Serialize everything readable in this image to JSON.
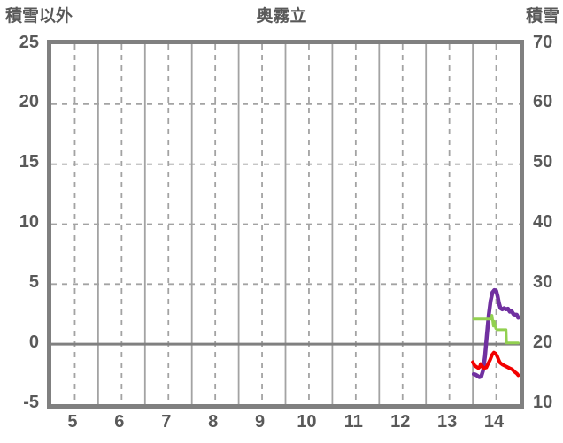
{
  "header": {
    "left_axis_title": "積雪以外",
    "station_title": "奥霧立",
    "right_axis_title": "積雪"
  },
  "colors": {
    "background": "#ffffff",
    "plot_border": "#808080",
    "gridline": "#a3a3a3",
    "zero_line": "#808080",
    "text": "#595959",
    "purple_series": "#7030a0",
    "green_series": "#92d050",
    "red_series": "#f20000"
  },
  "chart_data": {
    "type": "line",
    "title": "奥霧立",
    "x_axis": {
      "range": [
        4.5,
        14.5
      ],
      "tick_positions": [
        5,
        6,
        7,
        8,
        9,
        10,
        11,
        12,
        13,
        14
      ],
      "tick_labels": [
        "5",
        "6",
        "7",
        "8",
        "9",
        "10",
        "11",
        "12",
        "13",
        "14"
      ],
      "solid_gridlines": [
        5.5,
        6.5,
        7.5,
        8.5,
        9.5,
        10.5,
        11.5,
        12.5,
        13.5
      ],
      "dashed_gridlines": [
        5,
        6,
        7,
        8,
        9,
        10,
        11,
        12,
        13,
        14
      ]
    },
    "left_axis": {
      "title": "積雪以外",
      "range": [
        -5,
        25
      ],
      "ticks": [
        25,
        20,
        15,
        10,
        5,
        0,
        -5
      ],
      "dashed_gridlines": [
        20,
        15,
        10,
        5
      ],
      "zero_line": 0
    },
    "right_axis": {
      "title": "積雪",
      "range": [
        10,
        70
      ],
      "ticks": [
        70,
        60,
        50,
        40,
        30,
        20,
        10
      ]
    },
    "grid": true,
    "legend": "none",
    "series": [
      {
        "name": "purple-right-axis",
        "axis": "right",
        "color": "#7030a0",
        "stroke_width": 4.5,
        "points": [
          [
            13.52,
            15.0
          ],
          [
            13.56,
            14.9
          ],
          [
            13.6,
            14.7
          ],
          [
            13.64,
            14.5
          ],
          [
            13.68,
            14.6
          ],
          [
            13.72,
            15.6
          ],
          [
            13.76,
            18.0
          ],
          [
            13.8,
            21.5
          ],
          [
            13.84,
            24.8
          ],
          [
            13.88,
            27.2
          ],
          [
            13.92,
            28.6
          ],
          [
            13.96,
            29.0
          ],
          [
            14.0,
            28.9
          ],
          [
            14.03,
            28.0
          ],
          [
            14.06,
            26.8
          ],
          [
            14.09,
            26.0
          ],
          [
            14.13,
            25.8
          ],
          [
            14.17,
            26.0
          ],
          [
            14.21,
            25.8
          ],
          [
            14.25,
            25.9
          ],
          [
            14.29,
            25.4
          ],
          [
            14.33,
            25.5
          ],
          [
            14.37,
            25.0
          ],
          [
            14.41,
            24.9
          ],
          [
            14.44,
            24.9
          ],
          [
            14.47,
            24.4
          ]
        ]
      },
      {
        "name": "green-left-axis",
        "axis": "left",
        "color": "#92d050",
        "stroke_width": 3,
        "points": [
          [
            13.52,
            2.1
          ],
          [
            13.88,
            2.1
          ],
          [
            13.91,
            2.4
          ],
          [
            13.94,
            1.5
          ],
          [
            13.96,
            1.9
          ],
          [
            13.99,
            1.3
          ],
          [
            14.02,
            1.2
          ],
          [
            14.21,
            1.2
          ],
          [
            14.22,
            0.1
          ],
          [
            14.47,
            0.1
          ]
        ]
      },
      {
        "name": "red-left-axis",
        "axis": "left",
        "color": "#f20000",
        "stroke_width": 4,
        "points": [
          [
            13.5,
            -1.5
          ],
          [
            13.54,
            -1.8
          ],
          [
            13.58,
            -1.9
          ],
          [
            13.62,
            -2.0
          ],
          [
            13.65,
            -1.9
          ],
          [
            13.67,
            -1.65
          ],
          [
            13.7,
            -1.85
          ],
          [
            13.74,
            -2.0
          ],
          [
            13.79,
            -1.95
          ],
          [
            13.83,
            -1.6
          ],
          [
            13.87,
            -1.3
          ],
          [
            13.91,
            -0.9
          ],
          [
            13.95,
            -0.7
          ],
          [
            13.99,
            -0.8
          ],
          [
            14.02,
            -1.0
          ],
          [
            14.05,
            -1.3
          ],
          [
            14.08,
            -1.55
          ],
          [
            14.13,
            -1.7
          ],
          [
            14.18,
            -1.8
          ],
          [
            14.23,
            -1.9
          ],
          [
            14.28,
            -2.0
          ],
          [
            14.34,
            -2.1
          ],
          [
            14.39,
            -2.3
          ],
          [
            14.44,
            -2.45
          ],
          [
            14.47,
            -2.6
          ]
        ]
      }
    ]
  }
}
